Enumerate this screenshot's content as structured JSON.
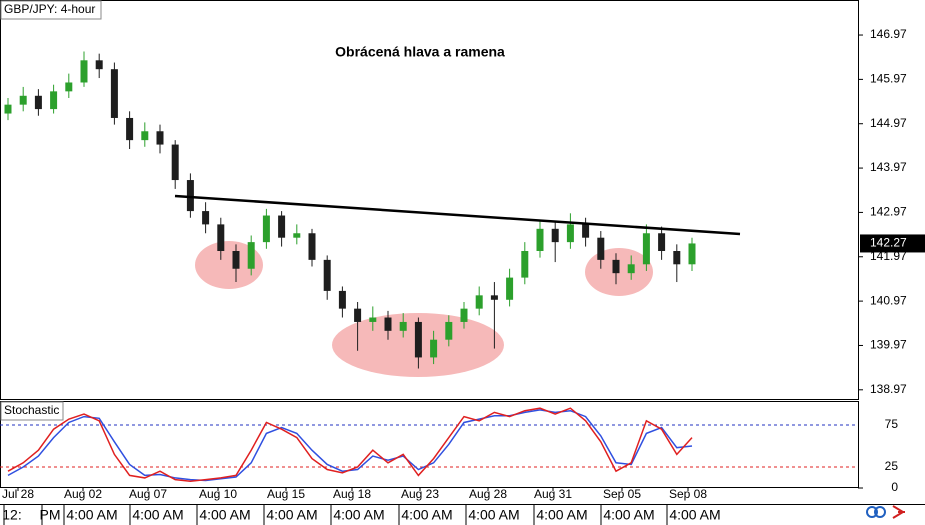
{
  "chart_data": [
    {
      "type": "candlestick",
      "title": "GBP/JPY: 4-hour",
      "annotation": "Obrácená hlava a ramena",
      "open": [
        145.2,
        145.4,
        145.6,
        145.3,
        145.7,
        145.9,
        146.4,
        146.2,
        145.1,
        144.6,
        144.8,
        144.5,
        143.7,
        143.0,
        142.7,
        142.1,
        141.7,
        142.3,
        142.9,
        142.4,
        142.5,
        141.9,
        141.2,
        140.8,
        140.5,
        140.6,
        140.3,
        140.5,
        139.7,
        140.1,
        140.5,
        140.8,
        141.1,
        141.0,
        141.5,
        142.1,
        142.6,
        142.3,
        142.7,
        142.4,
        141.9,
        141.6,
        141.8,
        142.5,
        142.1,
        141.8
      ],
      "high": [
        145.55,
        145.8,
        145.75,
        145.85,
        146.1,
        146.6,
        146.55,
        146.35,
        145.25,
        145.0,
        144.95,
        144.6,
        143.85,
        143.2,
        142.85,
        142.25,
        142.45,
        143.05,
        143.0,
        142.7,
        142.6,
        142.0,
        141.3,
        140.95,
        140.85,
        140.75,
        140.7,
        140.6,
        140.3,
        140.65,
        140.95,
        141.3,
        141.4,
        141.7,
        142.3,
        142.8,
        142.75,
        142.95,
        142.85,
        142.55,
        142.05,
        142.0,
        142.7,
        142.65,
        142.25,
        142.4
      ],
      "low": [
        145.05,
        145.25,
        145.15,
        145.2,
        145.55,
        145.8,
        146.0,
        144.95,
        144.4,
        144.45,
        144.3,
        143.5,
        142.85,
        142.5,
        141.9,
        141.4,
        141.55,
        142.15,
        142.2,
        142.25,
        141.75,
        141.0,
        140.6,
        139.85,
        140.3,
        140.1,
        140.15,
        139.45,
        139.55,
        139.95,
        140.35,
        140.65,
        139.9,
        140.85,
        141.35,
        141.95,
        141.85,
        142.15,
        142.2,
        141.7,
        141.35,
        141.45,
        141.65,
        141.9,
        141.4,
        141.65
      ],
      "close": [
        145.4,
        145.6,
        145.3,
        145.7,
        145.9,
        146.4,
        146.2,
        145.1,
        144.6,
        144.8,
        144.5,
        143.7,
        143.0,
        142.7,
        142.1,
        141.7,
        142.3,
        142.9,
        142.4,
        142.5,
        141.9,
        141.2,
        140.8,
        140.5,
        140.6,
        140.3,
        140.5,
        139.7,
        140.1,
        140.5,
        140.8,
        141.1,
        141.0,
        141.5,
        142.1,
        142.6,
        142.3,
        142.7,
        142.4,
        141.9,
        141.6,
        141.8,
        142.5,
        142.1,
        141.8,
        142.27
      ],
      "up_color": "#2ca02c",
      "down_color": "#1e1e1e",
      "ylim": [
        138.74,
        147.76
      ],
      "yticks": [
        138.97,
        139.97,
        140.97,
        141.97,
        142.97,
        143.97,
        144.97,
        145.97,
        146.97
      ]
    },
    {
      "type": "line",
      "title": "Stochastic",
      "series": [
        {
          "color": "#3050e0",
          "values": [
            15,
            25,
            38,
            60,
            78,
            85,
            83,
            55,
            28,
            15,
            16,
            12,
            10,
            9,
            11,
            13,
            30,
            65,
            72,
            65,
            45,
            28,
            20,
            22,
            38,
            33,
            38,
            22,
            30,
            52,
            78,
            82,
            86,
            86,
            90,
            93,
            90,
            92,
            85,
            62,
            30,
            28,
            65,
            72,
            48,
            50
          ]
        },
        {
          "color": "#e02020",
          "values": [
            20,
            30,
            45,
            70,
            82,
            88,
            80,
            40,
            15,
            12,
            20,
            10,
            8,
            10,
            12,
            15,
            45,
            78,
            70,
            60,
            35,
            22,
            18,
            25,
            45,
            30,
            40,
            15,
            35,
            60,
            85,
            80,
            90,
            85,
            92,
            95,
            88,
            95,
            80,
            55,
            20,
            30,
            80,
            70,
            40,
            60
          ]
        }
      ],
      "ylim": [
        0,
        100
      ],
      "yticks": [
        0,
        25,
        75
      ]
    }
  ],
  "x_axis": {
    "dates": [
      "Jul 28",
      "Aug 02",
      "Aug 07",
      "Aug 10",
      "Aug 15",
      "Aug 18",
      "Aug 23",
      "Aug 28",
      "Aug 31",
      "Sep 05",
      "Sep 08"
    ],
    "times": [
      "12:",
      "PM",
      "4:00 AM",
      "4:00 AM",
      "4:00 AM",
      "4:00 AM",
      "4:00 AM",
      "4:00 AM",
      "4:00 AM",
      "4:00 AM",
      "4:00 AM",
      "4:00 AM"
    ]
  }
}
